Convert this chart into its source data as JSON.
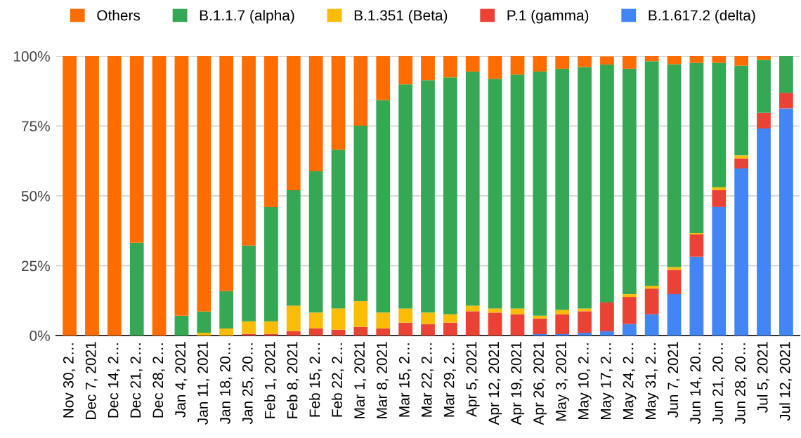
{
  "chart_data": {
    "type": "bar",
    "stacked": true,
    "legend": "top",
    "grid": "y",
    "categories": [
      "Nov 30, 2…",
      "Dec 7, 2021",
      "Dec 14, 2…",
      "Dec 21, 2…",
      "Dec 28, 2…",
      "Jan 4, 2021",
      "Jan 11, 2021",
      "Jan 18, 20…",
      "Jan 25, 20…",
      "Feb 1, 2021",
      "Feb 8, 2021",
      "Feb 15, 2…",
      "Feb 22, 2…",
      "Mar 1, 2021",
      "Mar 8, 2021",
      "Mar 15, 2…",
      "Mar 22, 2…",
      "Mar 29, 2…",
      "Apr 5, 2021",
      "Apr 12, 2021",
      "Apr 19, 2021",
      "Apr 26, 2021",
      "May 3, 2021",
      "May 10, 2…",
      "May 17, 2…",
      "May 24, 2…",
      "May 31, 2…",
      "Jun 7, 2021",
      "Jun 14, 20…",
      "Jun 21, 20…",
      "Jun 28, 20…",
      "Jul 5, 2021",
      "Jul 12, 2021"
    ],
    "ylim": [
      0,
      100
    ],
    "yticks": [
      {
        "value": 0,
        "label": "0%"
      },
      {
        "value": 25,
        "label": "25%"
      },
      {
        "value": 50,
        "label": "50%"
      },
      {
        "value": 75,
        "label": "75%"
      },
      {
        "value": 100,
        "label": "100%"
      }
    ],
    "series": [
      {
        "name": "B.1.617.2 (delta)",
        "color": "#4285f4",
        "values": [
          0,
          0,
          0,
          0,
          0,
          0,
          0,
          0,
          0,
          0,
          0,
          0,
          0,
          0,
          0,
          0,
          0,
          0,
          0,
          0,
          0,
          0.5,
          0.5,
          1.0,
          1.5,
          4.1,
          7.6,
          14.8,
          28.2,
          46.0,
          59.8,
          74.1,
          81.3
        ]
      },
      {
        "name": "P.1 (gamma)",
        "color": "#ea4335",
        "values": [
          0,
          0,
          0,
          0,
          0,
          0,
          0,
          0,
          0.6,
          0.6,
          1.6,
          2.6,
          2.1,
          3.1,
          2.6,
          4.6,
          4.1,
          4.6,
          8.7,
          8.2,
          7.6,
          5.6,
          7.1,
          7.7,
          10.3,
          9.7,
          9.2,
          8.7,
          8.0,
          6.1,
          3.6,
          5.6,
          5.6
        ]
      },
      {
        "name": "B.1.351 (Beta)",
        "color": "#fbbc04",
        "values": [
          0,
          0,
          0,
          0,
          0,
          0,
          1.0,
          2.5,
          4.5,
          4.5,
          9.1,
          5.6,
          7.6,
          9.2,
          5.6,
          5.1,
          4.1,
          3.0,
          2.0,
          1.5,
          2.1,
          1.0,
          1.6,
          1.0,
          0,
          1.0,
          1.0,
          1.0,
          0.5,
          1.0,
          1.1,
          0,
          0
        ]
      },
      {
        "name": "B.1.1.7 (alpha)",
        "color": "#34a853",
        "values": [
          0,
          0,
          0,
          33.2,
          0,
          7.1,
          7.6,
          13.4,
          27.1,
          40.9,
          41.3,
          50.6,
          56.8,
          62.8,
          76.1,
          80.2,
          83.2,
          84.8,
          83.8,
          82.2,
          83.7,
          87.4,
          86.3,
          86.4,
          85.2,
          80.7,
          80.4,
          72.6,
          60.9,
          44.5,
          32.1,
          19.0,
          13.1
        ]
      },
      {
        "name": "Others",
        "color": "#ff6d01",
        "values": [
          100,
          100,
          100,
          66.8,
          100,
          92.9,
          91.4,
          84.1,
          67.8,
          54.0,
          48.0,
          41.2,
          33.5,
          24.9,
          15.7,
          10.1,
          8.6,
          7.6,
          5.5,
          8.1,
          6.6,
          5.5,
          4.5,
          3.9,
          2.9,
          4.5,
          1.8,
          2.9,
          2.4,
          2.4,
          3.4,
          1.3,
          0
        ]
      }
    ]
  }
}
